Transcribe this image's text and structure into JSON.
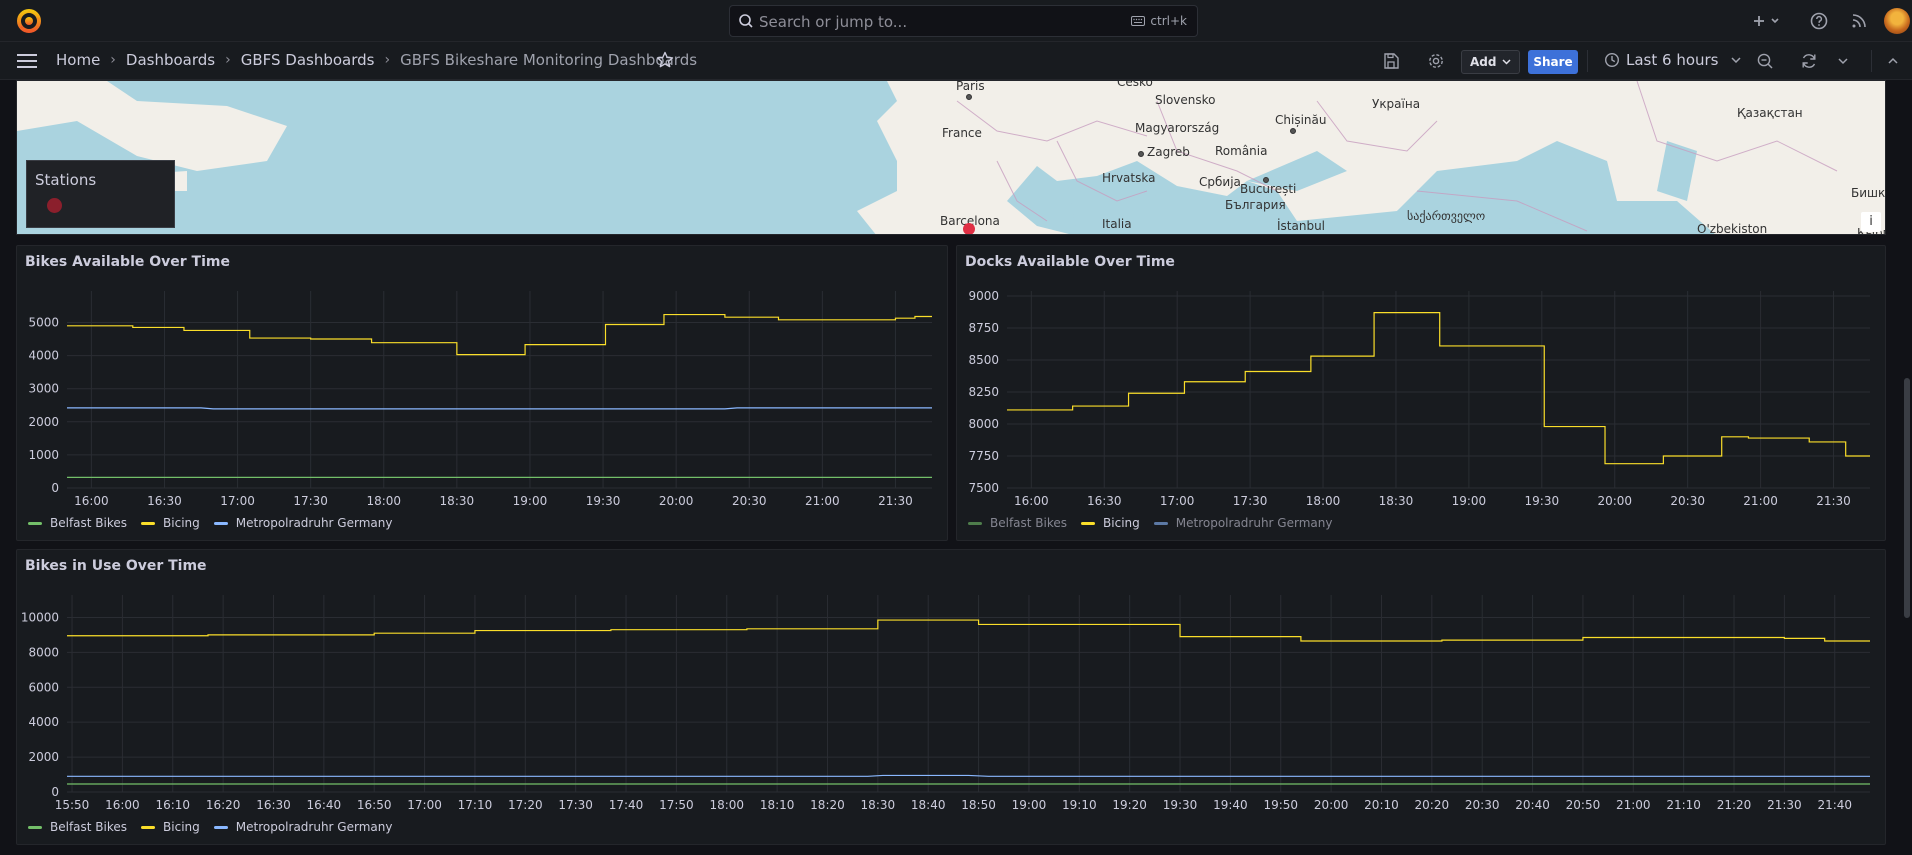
{
  "topbar": {
    "search_placeholder": "Search or jump to...",
    "search_shortcut": "ctrl+k"
  },
  "breadcrumbs": [
    {
      "label": "Home"
    },
    {
      "label": "Dashboards"
    },
    {
      "label": "GBFS Dashboards"
    },
    {
      "label": "GBFS Bikeshare Monitoring Dashboards"
    }
  ],
  "toolbar": {
    "add_label": "Add",
    "share_label": "Share",
    "time_range": "Last 6 hours"
  },
  "map": {
    "legend_title": "Stations",
    "station_color": "#e02f44",
    "info_label": "i",
    "places": [
      {
        "name": "Paris"
      },
      {
        "name": "Česko"
      },
      {
        "name": "Slovensko"
      },
      {
        "name": "Україна"
      },
      {
        "name": "France"
      },
      {
        "name": "Magyarország"
      },
      {
        "name": "Chișinău"
      },
      {
        "name": "Қазақстан"
      },
      {
        "name": "Zagreb"
      },
      {
        "name": "România"
      },
      {
        "name": "Hrvatska"
      },
      {
        "name": "Србија"
      },
      {
        "name": "București"
      },
      {
        "name": "България"
      },
      {
        "name": "Barcelona"
      },
      {
        "name": "Italia"
      },
      {
        "name": "İstanbul"
      },
      {
        "name": "საქართველო"
      },
      {
        "name": "O'zbekiston"
      },
      {
        "name": "Бишке"
      },
      {
        "name": "Кыргыз"
      }
    ]
  },
  "colors": {
    "belfast": "#73bf69",
    "bicing": "#fade2a",
    "metropolradruhr": "#8ab8ff"
  },
  "panels": [
    {
      "title": "Bikes Available Over Time",
      "chart_data": {
        "type": "line",
        "ylim": [
          0,
          5800
        ],
        "yticks": [
          0,
          1000,
          2000,
          3000,
          4000,
          5000
        ],
        "xlim": [
          "15:50",
          "21:45"
        ],
        "xticks": [
          "16:00",
          "16:30",
          "17:00",
          "17:30",
          "18:00",
          "18:30",
          "19:00",
          "19:30",
          "20:00",
          "20:30",
          "21:00",
          "21:30"
        ],
        "series": [
          {
            "name": "Belfast Bikes",
            "step": false,
            "points": [
              [
                "15:50",
                320
              ],
              [
                "21:45",
                320
              ]
            ]
          },
          {
            "name": "Bicing",
            "step": true,
            "points": [
              [
                "15:50",
                4900
              ],
              [
                "16:17",
                4850
              ],
              [
                "16:38",
                4760
              ],
              [
                "17:05",
                4530
              ],
              [
                "17:30",
                4500
              ],
              [
                "17:55",
                4390
              ],
              [
                "18:30",
                4030
              ],
              [
                "18:58",
                4330
              ],
              [
                "19:31",
                4940
              ],
              [
                "19:55",
                5240
              ],
              [
                "20:20",
                5160
              ],
              [
                "20:42",
                5080
              ],
              [
                "21:30",
                5130
              ],
              [
                "21:38",
                5180
              ],
              [
                "21:45",
                5180
              ]
            ]
          },
          {
            "name": "Metropolradruhr Germany",
            "step": false,
            "points": [
              [
                "15:50",
                2420
              ],
              [
                "16:45",
                2420
              ],
              [
                "16:50",
                2390
              ],
              [
                "20:20",
                2390
              ],
              [
                "20:25",
                2420
              ],
              [
                "21:45",
                2420
              ]
            ]
          }
        ]
      }
    },
    {
      "title": "Docks Available Over Time",
      "chart_data": {
        "type": "line",
        "ylim": [
          7500,
          9000
        ],
        "yticks": [
          7500,
          7750,
          8000,
          8250,
          8500,
          8750,
          9000
        ],
        "xlim": [
          "15:50",
          "21:45"
        ],
        "xticks": [
          "16:00",
          "16:30",
          "17:00",
          "17:30",
          "18:00",
          "18:30",
          "19:00",
          "19:30",
          "20:00",
          "20:30",
          "21:00",
          "21:30"
        ],
        "series": [
          {
            "name": "Belfast Bikes",
            "step": true,
            "points": []
          },
          {
            "name": "Bicing",
            "step": true,
            "points": [
              [
                "15:50",
                8110
              ],
              [
                "16:17",
                8140
              ],
              [
                "16:40",
                8240
              ],
              [
                "17:03",
                8330
              ],
              [
                "17:28",
                8410
              ],
              [
                "17:55",
                8530
              ],
              [
                "18:21",
                8870
              ],
              [
                "18:48",
                8610
              ],
              [
                "19:31",
                7980
              ],
              [
                "19:56",
                7690
              ],
              [
                "20:20",
                7750
              ],
              [
                "20:44",
                7900
              ],
              [
                "20:55",
                7890
              ],
              [
                "21:20",
                7860
              ],
              [
                "21:35",
                7750
              ],
              [
                "21:45",
                7750
              ]
            ]
          },
          {
            "name": "Metropolradruhr Germany",
            "step": true,
            "points": []
          }
        ]
      }
    },
    {
      "title": "Bikes in Use Over Time",
      "chart_data": {
        "type": "line",
        "ylim": [
          0,
          11000
        ],
        "yticks": [
          0,
          2000,
          4000,
          6000,
          8000,
          10000
        ],
        "xlim": [
          "15:49",
          "21:47"
        ],
        "xticks": [
          "15:50",
          "16:00",
          "16:10",
          "16:20",
          "16:30",
          "16:40",
          "16:50",
          "17:00",
          "17:10",
          "17:20",
          "17:30",
          "17:40",
          "17:50",
          "18:00",
          "18:10",
          "18:20",
          "18:30",
          "18:40",
          "18:50",
          "19:00",
          "19:10",
          "19:20",
          "19:30",
          "19:40",
          "19:50",
          "20:00",
          "20:10",
          "20:20",
          "20:30",
          "20:40",
          "20:50",
          "21:00",
          "21:10",
          "21:20",
          "21:30",
          "21:40"
        ],
        "series": [
          {
            "name": "Belfast Bikes",
            "step": false,
            "points": [
              [
                "15:49",
                460
              ],
              [
                "21:47",
                460
              ]
            ]
          },
          {
            "name": "Bicing",
            "step": true,
            "points": [
              [
                "15:49",
                8950
              ],
              [
                "16:17",
                9000
              ],
              [
                "16:50",
                9100
              ],
              [
                "17:10",
                9250
              ],
              [
                "17:37",
                9300
              ],
              [
                "18:04",
                9350
              ],
              [
                "18:30",
                9850
              ],
              [
                "18:50",
                9600
              ],
              [
                "19:30",
                8900
              ],
              [
                "19:54",
                8650
              ],
              [
                "20:22",
                8700
              ],
              [
                "20:50",
                8850
              ],
              [
                "21:30",
                8800
              ],
              [
                "21:38",
                8650
              ],
              [
                "21:47",
                8650
              ]
            ]
          },
          {
            "name": "Metropolradruhr Germany",
            "step": false,
            "points": [
              [
                "15:49",
                900
              ],
              [
                "18:28",
                900
              ],
              [
                "18:31",
                950
              ],
              [
                "18:48",
                950
              ],
              [
                "18:52",
                900
              ],
              [
                "21:47",
                900
              ]
            ]
          }
        ]
      }
    }
  ]
}
